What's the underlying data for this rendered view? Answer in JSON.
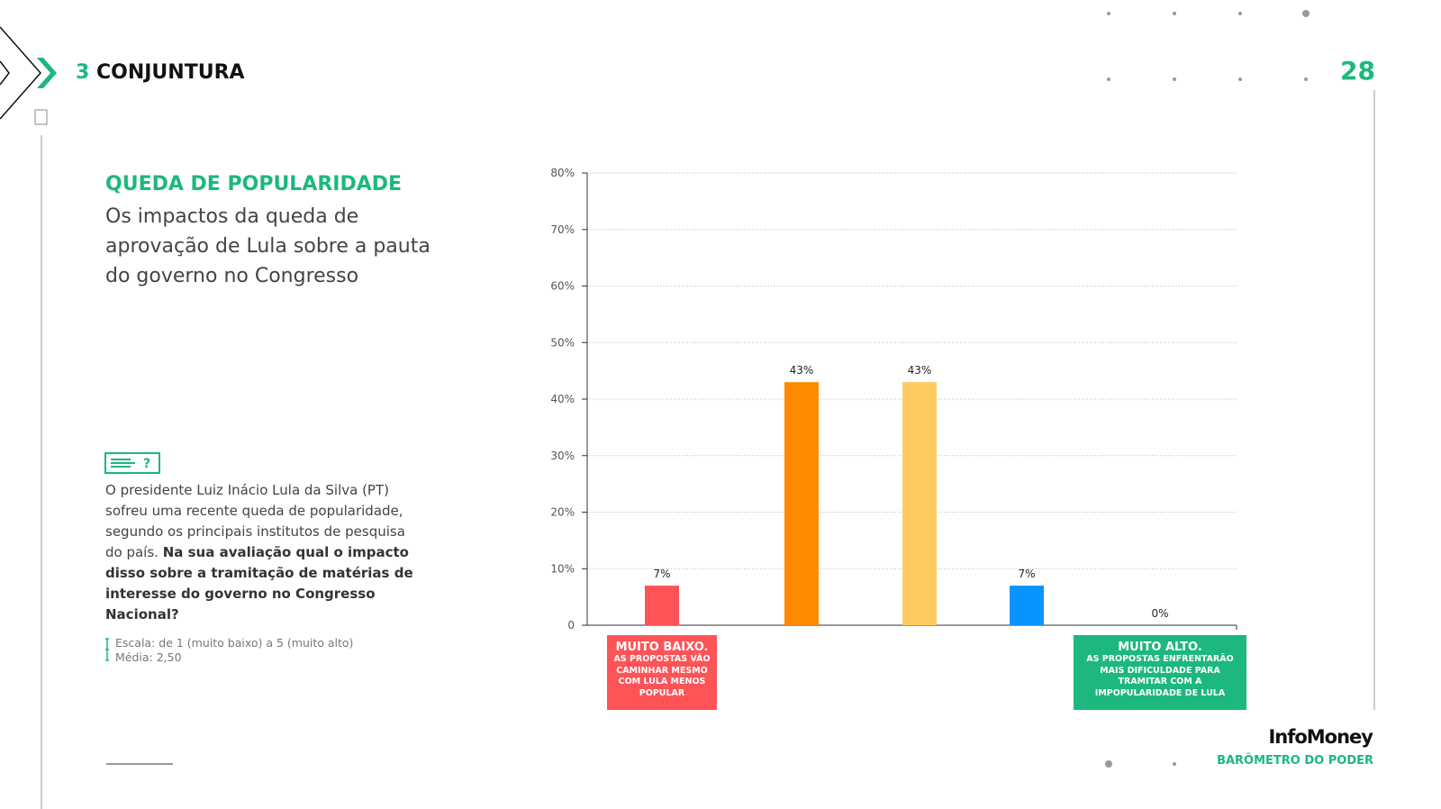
{
  "header": {
    "section_number": 3,
    "section_title": "CONJUNTURA",
    "page_number": 28
  },
  "heading": {
    "title": "QUEDA DE POPULARIDADE",
    "subtitle": "Os impactos da queda de aprovação de Lula sobre a pauta do governo no Congresso"
  },
  "question": {
    "context": "O presidente Luiz Inácio Lula da Silva (PT) sofreu uma recente queda de popularidade, segundo os principais institutos de pesquisa do país.",
    "prompt": "Na sua avaliação qual o impacto disso sobre a tramitação de matérias de interesse do governo no Congresso Nacional?",
    "scale": "Escala: de 1 (muito baixo) a 5 (muito alto)",
    "mean": "Média: 2,50"
  },
  "footer": {
    "brand": "InfoMoney",
    "publication": "BARÔMETRO DO PODER"
  },
  "chart_data": {
    "type": "bar",
    "categories": [
      "MUITO BAIXO.",
      null,
      null,
      null,
      "MUITO ALTO."
    ],
    "category_notes": [
      "AS PROPOSTAS VÃO CAMINHAR MESMO COM LULA MENOS POPULAR",
      null,
      null,
      null,
      "AS PROPOSTAS ENFRENTARÃO MAIS DIFICULDADE PARA TRAMITAR COM A IMPOPULARIDADE DE LULA"
    ],
    "values": [
      7,
      43,
      43,
      7,
      0
    ],
    "value_labels": [
      "7%",
      "43%",
      "43%",
      "7%",
      "0%"
    ],
    "colors": [
      "#fe5357",
      "#fe8a00",
      "#fecb62",
      "#0a94fe",
      "#1cb87e"
    ],
    "ylim": [
      0,
      80
    ],
    "yticks": [
      0,
      {
        "value": 10,
        "label": "10%"
      },
      {
        "value": 20,
        "label": "20%"
      },
      {
        "value": 30,
        "label": "30%"
      },
      {
        "value": 40,
        "label": "40%"
      },
      {
        "value": 50,
        "label": "50%"
      },
      {
        "value": 60,
        "label": "60%"
      },
      {
        "value": 70,
        "label": "70%"
      },
      {
        "value": 80,
        "label": "80%"
      }
    ],
    "grid": true
  }
}
